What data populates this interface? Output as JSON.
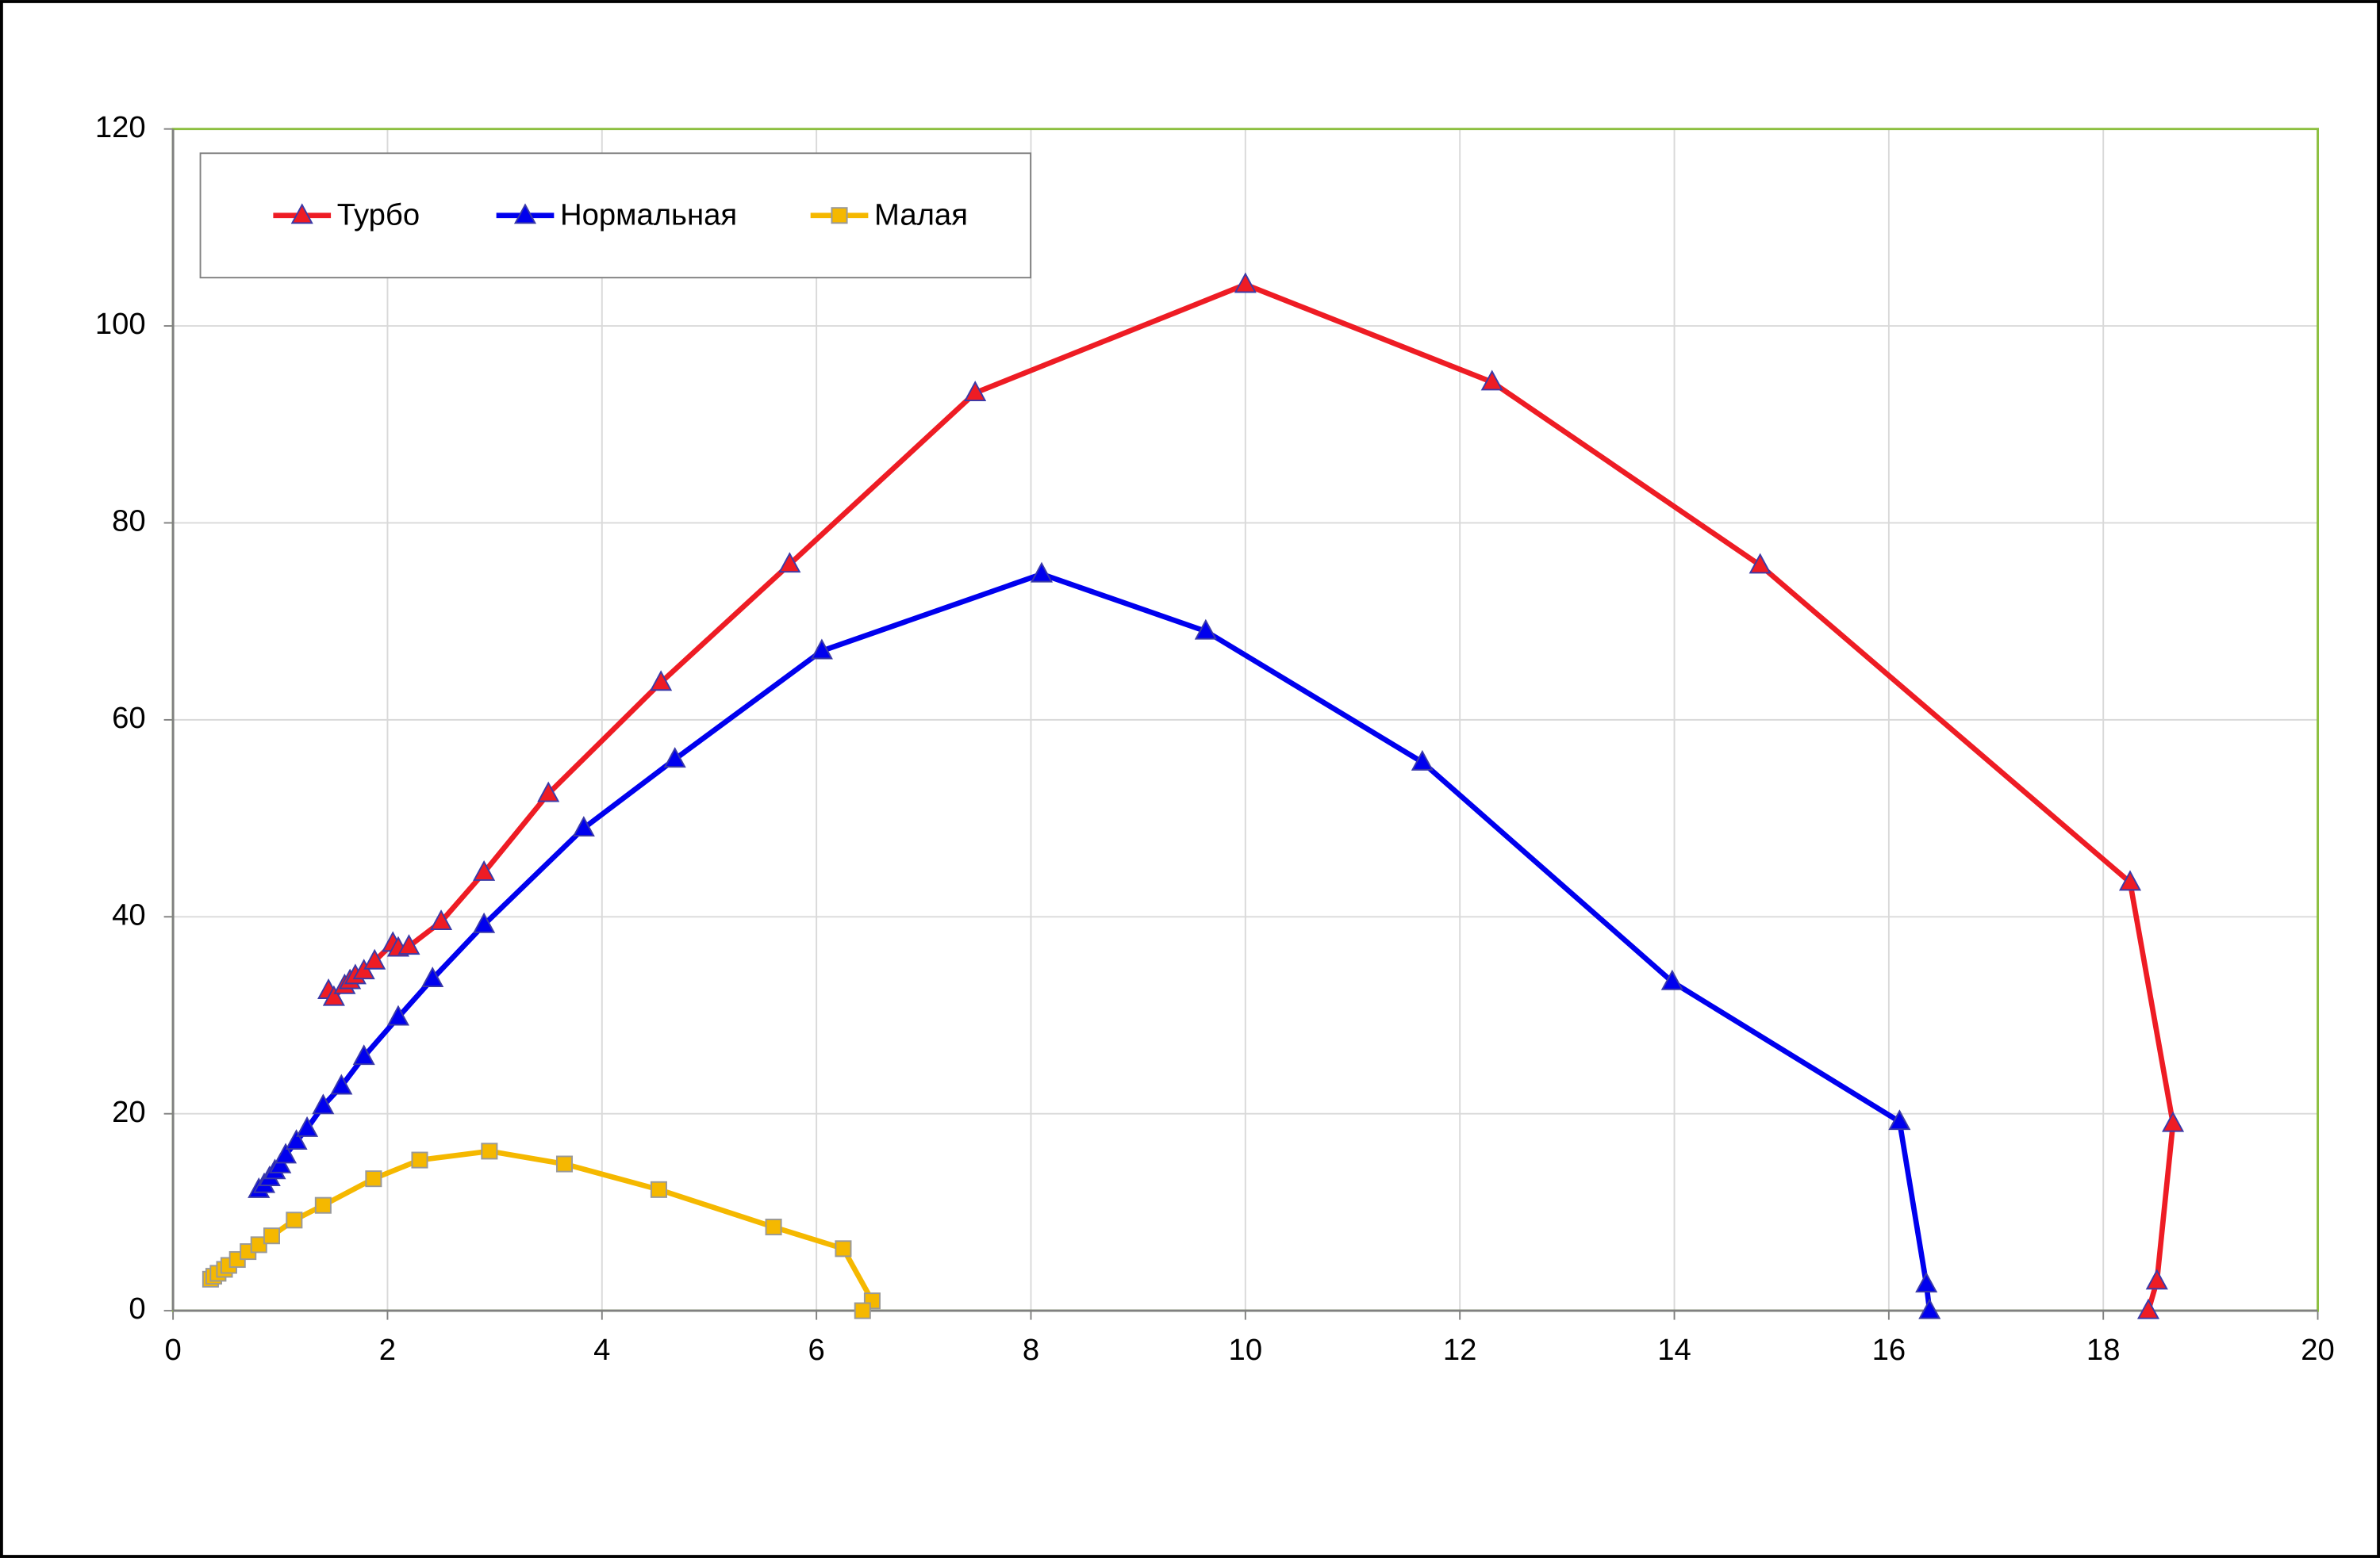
{
  "chart_data": {
    "type": "line",
    "xlim": [
      0,
      20
    ],
    "ylim": [
      0,
      120
    ],
    "xticks": [
      0,
      2,
      4,
      6,
      8,
      10,
      12,
      14,
      16,
      18,
      20
    ],
    "yticks": [
      0,
      20,
      40,
      60,
      80,
      100,
      120
    ],
    "grid": true,
    "legend": "top-left",
    "series": [
      {
        "name": "Турбо",
        "color": "#ee1c24",
        "marker": "triangle",
        "x": [
          1.45,
          1.5,
          1.6,
          1.65,
          1.7,
          1.78,
          1.88,
          2.05,
          2.1,
          2.2,
          2.5,
          2.9,
          3.5,
          4.55,
          5.75,
          7.48,
          10,
          12.3,
          14.8,
          18.25,
          18.65,
          18.5,
          18.42
        ],
        "values": [
          32.5,
          31.8,
          33,
          33.5,
          34,
          34.5,
          35.5,
          37.3,
          36.8,
          37,
          39.5,
          44.5,
          52.5,
          63.8,
          75.8,
          93.2,
          104.2,
          94.3,
          75.7,
          43.5,
          19,
          3,
          0
        ]
      },
      {
        "name": "Нормальная",
        "color": "#0000ee",
        "marker": "triangle",
        "x": [
          0.8,
          0.85,
          0.9,
          0.95,
          1.0,
          1.05,
          1.15,
          1.25,
          1.4,
          1.57,
          1.78,
          2.1,
          2.42,
          2.9,
          3.83,
          4.68,
          6.05,
          8.1,
          9.63,
          11.65,
          13.98,
          16.1,
          16.35,
          16.38
        ],
        "values": [
          12.3,
          12.8,
          13.5,
          14.2,
          14.8,
          15.8,
          17.2,
          18.5,
          20.8,
          22.8,
          25.8,
          29.8,
          33.7,
          39.2,
          49,
          56,
          67,
          74.8,
          69,
          55.7,
          33.4,
          19.2,
          2.7,
          0
        ]
      },
      {
        "name": "Малая",
        "color": "#f5b800",
        "marker": "square",
        "x": [
          0.35,
          0.38,
          0.42,
          0.48,
          0.52,
          0.6,
          0.7,
          0.8,
          0.92,
          1.13,
          1.4,
          1.87,
          2.3,
          2.95,
          3.65,
          4.53,
          5.6,
          6.25,
          6.52,
          6.43
        ],
        "values": [
          3.2,
          3.5,
          3.8,
          4.2,
          4.6,
          5.2,
          6,
          6.7,
          7.6,
          9.2,
          10.7,
          13.4,
          15.3,
          16.2,
          14.9,
          12.3,
          8.5,
          6.3,
          1,
          0
        ]
      }
    ]
  }
}
